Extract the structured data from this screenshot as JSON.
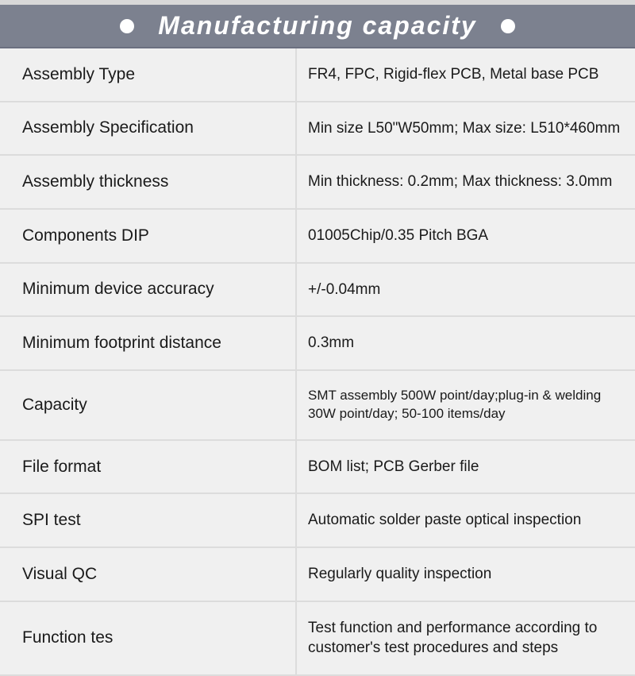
{
  "header": {
    "title": "Manufacturing capacity",
    "bg_color": "#7c818f",
    "text_color": "#ffffff",
    "title_fontsize": 32
  },
  "table": {
    "row_bg": "#f0f0f0",
    "border_color": "#dcdcdc",
    "label_fontsize": 21,
    "value_fontsize": 19,
    "text_color": "#1a1a1a",
    "label_width": 372,
    "rows": [
      {
        "label": "Assembly Type",
        "value": "FR4, FPC, Rigid-flex PCB, Metal base PCB"
      },
      {
        "label": "Assembly Specification",
        "value": "Min size L50\"W50mm; Max size: L510*460mm"
      },
      {
        "label": "Assembly thickness",
        "value": "Min thickness: 0.2mm; Max thickness: 3.0mm"
      },
      {
        "label": "Components DIP",
        "value": "01005Chip/0.35 Pitch BGA"
      },
      {
        "label": "Minimum device accuracy",
        "value": "+/-0.04mm"
      },
      {
        "label": "Minimum footprint distance",
        "value": "0.3mm"
      },
      {
        "label": "Capacity",
        "value": "SMT assembly 500W point/day;plug-in & welding 30W point/day; 50-100 items/day",
        "small": true
      },
      {
        "label": "File format",
        "value": "BOM list; PCB Gerber file"
      },
      {
        "label": "SPI test",
        "value": "Automatic solder paste optical inspection"
      },
      {
        "label": "Visual QC",
        "value": "Regularly quality inspection"
      },
      {
        "label": "Function tes",
        "value": "Test function and performance according to customer's test procedures and steps"
      }
    ]
  }
}
